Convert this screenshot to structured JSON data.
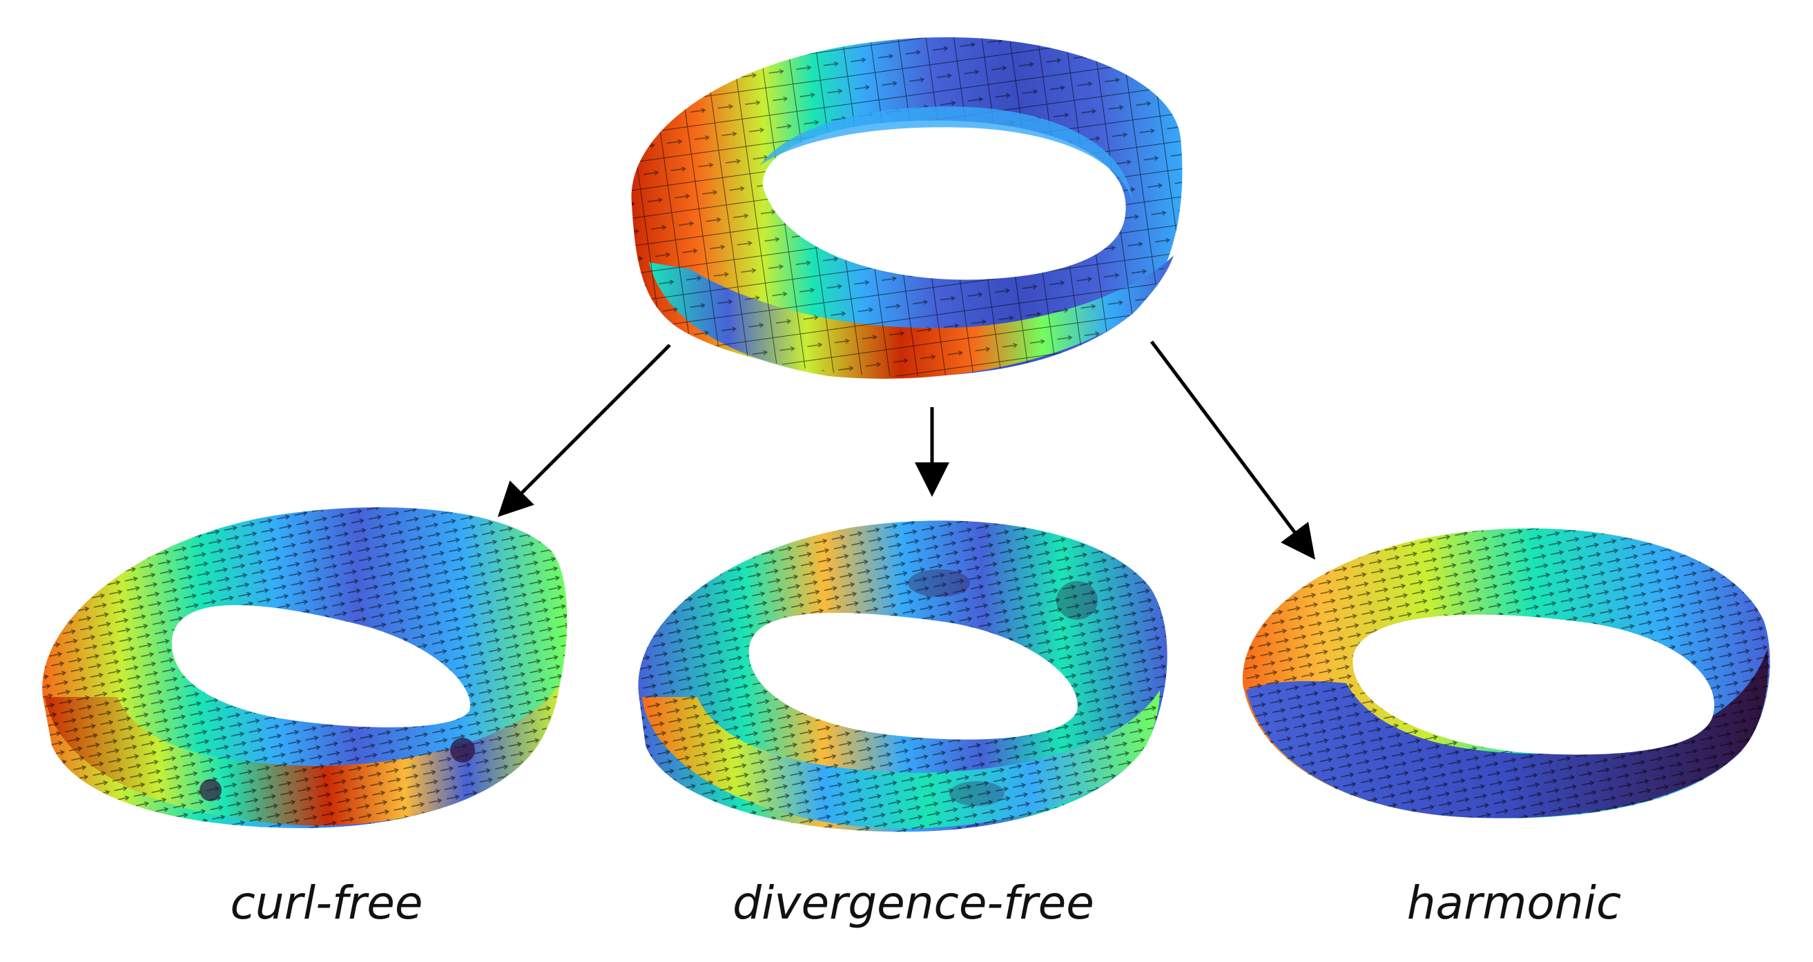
{
  "captions": {
    "left": "curl-free",
    "middle": "divergence-free",
    "right": "harmonic"
  },
  "colors": {
    "background": "#ffffff",
    "arrow": "#000000",
    "colormap": [
      "#30123b",
      "#4662d7",
      "#36aaf9",
      "#1ae4b6",
      "#72fe5e",
      "#c8ef34",
      "#faba39",
      "#f66b19",
      "#cb2a04",
      "#7a0403"
    ]
  }
}
